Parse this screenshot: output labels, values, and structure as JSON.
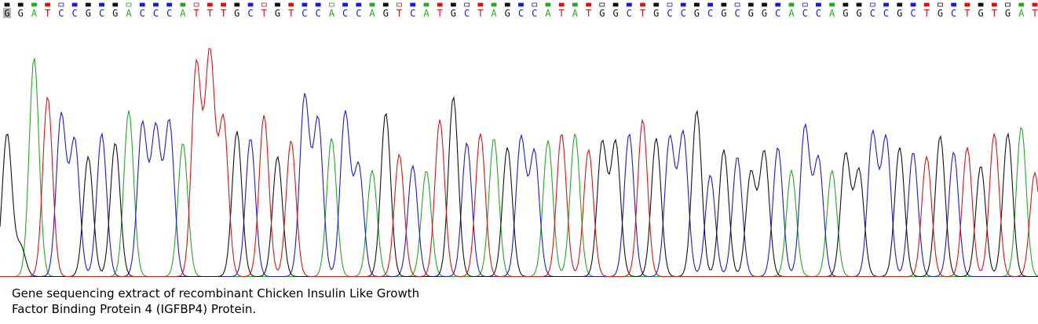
{
  "caption": {
    "line1": "Gene sequencing extract of recombinant Chicken Insulin Like Growth",
    "line2": "Factor Binding Protein 4 (IGFBP4) Protein."
  },
  "chart_data": {
    "type": "line",
    "colors": {
      "A": "#22aa22",
      "C": "#1a1ad2",
      "G": "#111111",
      "T": "#dd1111",
      "highlight": "#b8b8b8"
    },
    "highlight_index": 0,
    "sequence": [
      "G",
      "G",
      "A",
      "T",
      "C",
      "C",
      "G",
      "C",
      "G",
      "A",
      "C",
      "C",
      "C",
      "A",
      "T",
      "T",
      "T",
      "G",
      "C",
      "T",
      "G",
      "T",
      "C",
      "C",
      "A",
      "C",
      "C",
      "A",
      "G",
      "T",
      "C",
      "A",
      "T",
      "G",
      "C",
      "T",
      "A",
      "G",
      "C",
      "C",
      "A",
      "T",
      "A",
      "T",
      "G",
      "G",
      "C",
      "T",
      "G",
      "C",
      "C",
      "G",
      "C",
      "G",
      "C",
      "G",
      "G",
      "C",
      "A",
      "C",
      "C",
      "A",
      "G",
      "G",
      "C",
      "C",
      "G",
      "C",
      "T",
      "G",
      "C",
      "T",
      "G",
      "T",
      "G",
      "A",
      "T"
    ],
    "peak_heights": [
      0.62,
      0.13,
      0.95,
      0.78,
      0.7,
      0.59,
      0.52,
      0.62,
      0.58,
      0.72,
      0.66,
      0.64,
      0.67,
      0.58,
      0.92,
      0.97,
      0.68,
      0.63,
      0.6,
      0.7,
      0.52,
      0.59,
      0.78,
      0.68,
      0.6,
      0.71,
      0.48,
      0.46,
      0.71,
      0.53,
      0.48,
      0.46,
      0.68,
      0.78,
      0.58,
      0.62,
      0.6,
      0.56,
      0.6,
      0.54,
      0.59,
      0.62,
      0.62,
      0.55,
      0.58,
      0.58,
      0.62,
      0.68,
      0.6,
      0.6,
      0.62,
      0.72,
      0.44,
      0.55,
      0.52,
      0.45,
      0.54,
      0.56,
      0.46,
      0.65,
      0.51,
      0.46,
      0.53,
      0.46,
      0.62,
      0.6,
      0.56,
      0.54,
      0.52,
      0.61,
      0.54,
      0.56,
      0.48,
      0.62,
      0.62,
      0.65,
      0.45
    ]
  }
}
